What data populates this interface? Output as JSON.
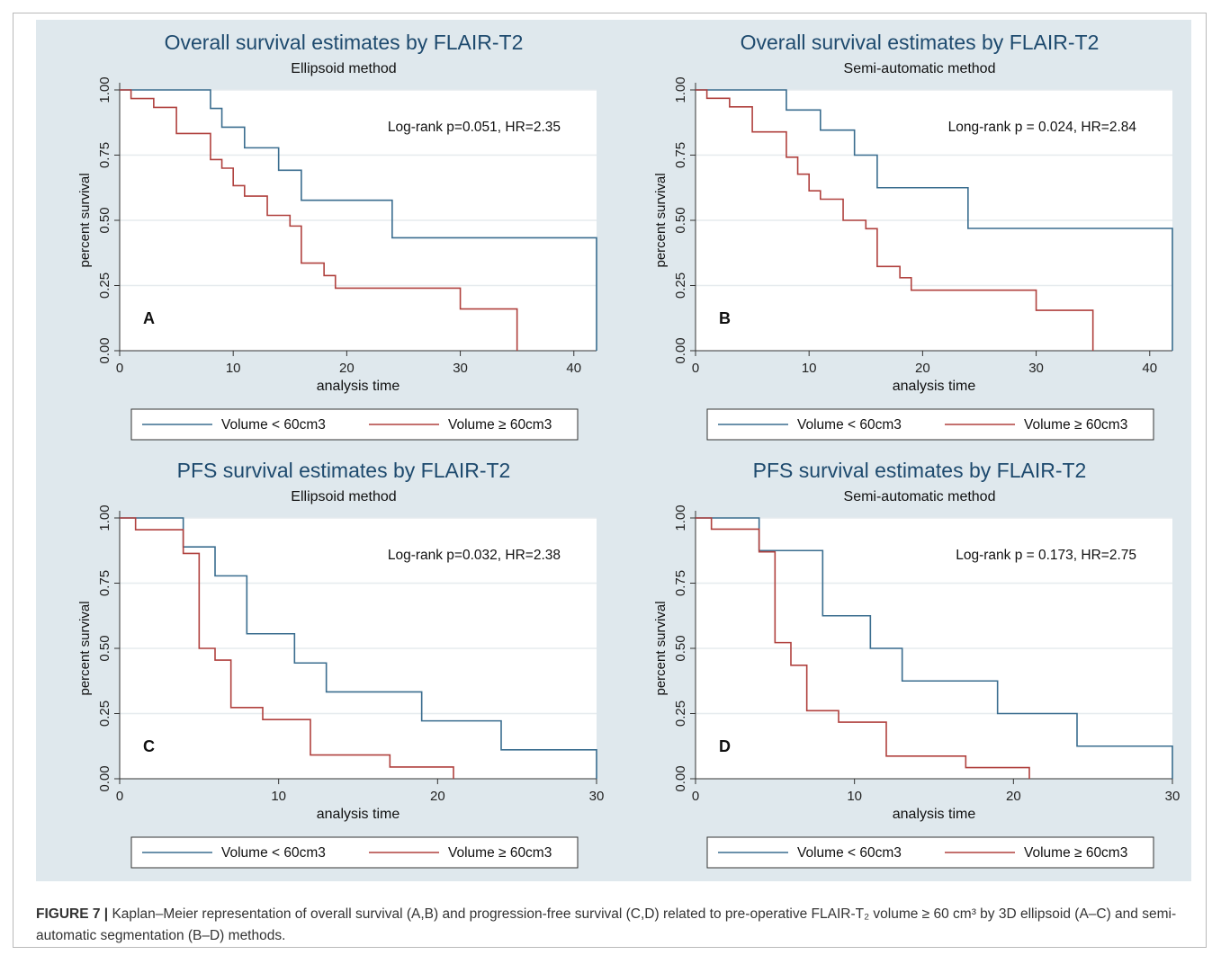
{
  "caption": {
    "label": "FIGURE 7 |",
    "text": "Kaplan–Meier representation of overall survival (A,B) and progression-free survival (C,D) related to pre-operative FLAIR-T₂ volume ≥ 60 cm³ by 3D ellipsoid (A–C) and semi-automatic segmentation (B–D) methods."
  },
  "chart_data": [
    {
      "type": "line",
      "panel_label": "A",
      "title": "Overall survival estimates by FLAIR-T2",
      "subtitle": "Ellipsoid method",
      "xlabel": "analysis time",
      "ylabel": "percent survival",
      "xlim": [
        0,
        42
      ],
      "ylim": [
        0,
        1
      ],
      "xticks": [
        0,
        10,
        20,
        30,
        40
      ],
      "yticks": [
        "0.00",
        "0.25",
        "0.50",
        "0.75",
        "1.00"
      ],
      "annotation": "Log-rank p=0.051, HR=2.35",
      "grid": true,
      "legend_position": "bottom",
      "series": [
        {
          "name": "Volume < 60cm3",
          "color": "#3a6d8f",
          "x": [
            0,
            8,
            9,
            11,
            14,
            16,
            24,
            42,
            42
          ],
          "y": [
            1.0,
            0.929,
            0.857,
            0.778,
            0.692,
            0.577,
            0.433,
            0.433,
            0.0
          ]
        },
        {
          "name": "Volume ≥ 60cm3",
          "color": "#b0413e",
          "x": [
            0,
            1,
            3,
            5,
            8,
            9,
            10,
            11,
            13,
            15,
            16,
            18,
            19,
            30,
            35,
            35
          ],
          "y": [
            1.0,
            0.967,
            0.933,
            0.833,
            0.733,
            0.7,
            0.633,
            0.593,
            0.519,
            0.478,
            0.336,
            0.288,
            0.24,
            0.16,
            0.16,
            0.0
          ]
        }
      ]
    },
    {
      "type": "line",
      "panel_label": "B",
      "title": "Overall survival estimates by FLAIR-T2",
      "subtitle": "Semi-automatic method",
      "xlabel": "analysis time",
      "ylabel": "percent survival",
      "xlim": [
        0,
        42
      ],
      "ylim": [
        0,
        1
      ],
      "xticks": [
        0,
        10,
        20,
        30,
        40
      ],
      "yticks": [
        "0.00",
        "0.25",
        "0.50",
        "0.75",
        "1.00"
      ],
      "annotation": "Long-rank p = 0.024, HR=2.84",
      "grid": true,
      "legend_position": "bottom",
      "series": [
        {
          "name": "Volume < 60cm3",
          "color": "#3a6d8f",
          "x": [
            0,
            8,
            11,
            14,
            16,
            24,
            42,
            42
          ],
          "y": [
            1.0,
            0.923,
            0.846,
            0.75,
            0.625,
            0.469,
            0.469,
            0.0
          ]
        },
        {
          "name": "Volume ≥ 60cm3",
          "color": "#b0413e",
          "x": [
            0,
            1,
            3,
            5,
            8,
            9,
            10,
            11,
            13,
            15,
            16,
            18,
            19,
            30,
            35,
            35
          ],
          "y": [
            1.0,
            0.968,
            0.935,
            0.839,
            0.742,
            0.677,
            0.613,
            0.581,
            0.5,
            0.468,
            0.323,
            0.28,
            0.232,
            0.155,
            0.155,
            0.0
          ]
        }
      ]
    },
    {
      "type": "line",
      "panel_label": "C",
      "title": "PFS survival estimates by FLAIR-T2",
      "subtitle": "Ellipsoid method",
      "xlabel": "analysis time",
      "ylabel": "percent survival",
      "xlim": [
        0,
        30
      ],
      "ylim": [
        0,
        1
      ],
      "xticks": [
        0,
        10,
        20,
        30
      ],
      "yticks": [
        "0.00",
        "0.25",
        "0.50",
        "0.75",
        "1.00"
      ],
      "annotation": "Log-rank p=0.032, HR=2.38",
      "grid": true,
      "legend_position": "bottom",
      "series": [
        {
          "name": "Volume < 60cm3",
          "color": "#3a6d8f",
          "x": [
            0,
            4,
            6,
            8,
            11,
            13,
            19,
            24,
            30,
            30
          ],
          "y": [
            1.0,
            0.889,
            0.778,
            0.556,
            0.444,
            0.333,
            0.222,
            0.111,
            0.111,
            0.0
          ]
        },
        {
          "name": "Volume ≥ 60cm3",
          "color": "#b0413e",
          "x": [
            0,
            1,
            4,
            5,
            6,
            7,
            9,
            12,
            17,
            21,
            21
          ],
          "y": [
            1.0,
            0.955,
            0.864,
            0.5,
            0.455,
            0.273,
            0.227,
            0.091,
            0.045,
            0.045,
            0.0
          ]
        }
      ]
    },
    {
      "type": "line",
      "panel_label": "D",
      "title": "PFS survival estimates by FLAIR-T2",
      "subtitle": "Semi-automatic method",
      "xlabel": "analysis time",
      "ylabel": "percent survival",
      "xlim": [
        0,
        30
      ],
      "ylim": [
        0,
        1
      ],
      "xticks": [
        0,
        10,
        20,
        30
      ],
      "yticks": [
        "0.00",
        "0.25",
        "0.50",
        "0.75",
        "1.00"
      ],
      "annotation": "Log-rank p = 0.173, HR=2.75",
      "grid": true,
      "legend_position": "bottom",
      "series": [
        {
          "name": "Volume < 60cm3",
          "color": "#3a6d8f",
          "x": [
            0,
            4,
            8,
            11,
            13,
            19,
            24,
            30,
            30
          ],
          "y": [
            1.0,
            0.875,
            0.625,
            0.5,
            0.375,
            0.25,
            0.125,
            0.125,
            0.0
          ]
        },
        {
          "name": "Volume ≥ 60cm3",
          "color": "#b0413e",
          "x": [
            0,
            1,
            4,
            5,
            6,
            7,
            9,
            12,
            17,
            21,
            21
          ],
          "y": [
            1.0,
            0.957,
            0.87,
            0.522,
            0.435,
            0.261,
            0.217,
            0.087,
            0.043,
            0.043,
            0.0
          ]
        }
      ]
    }
  ]
}
